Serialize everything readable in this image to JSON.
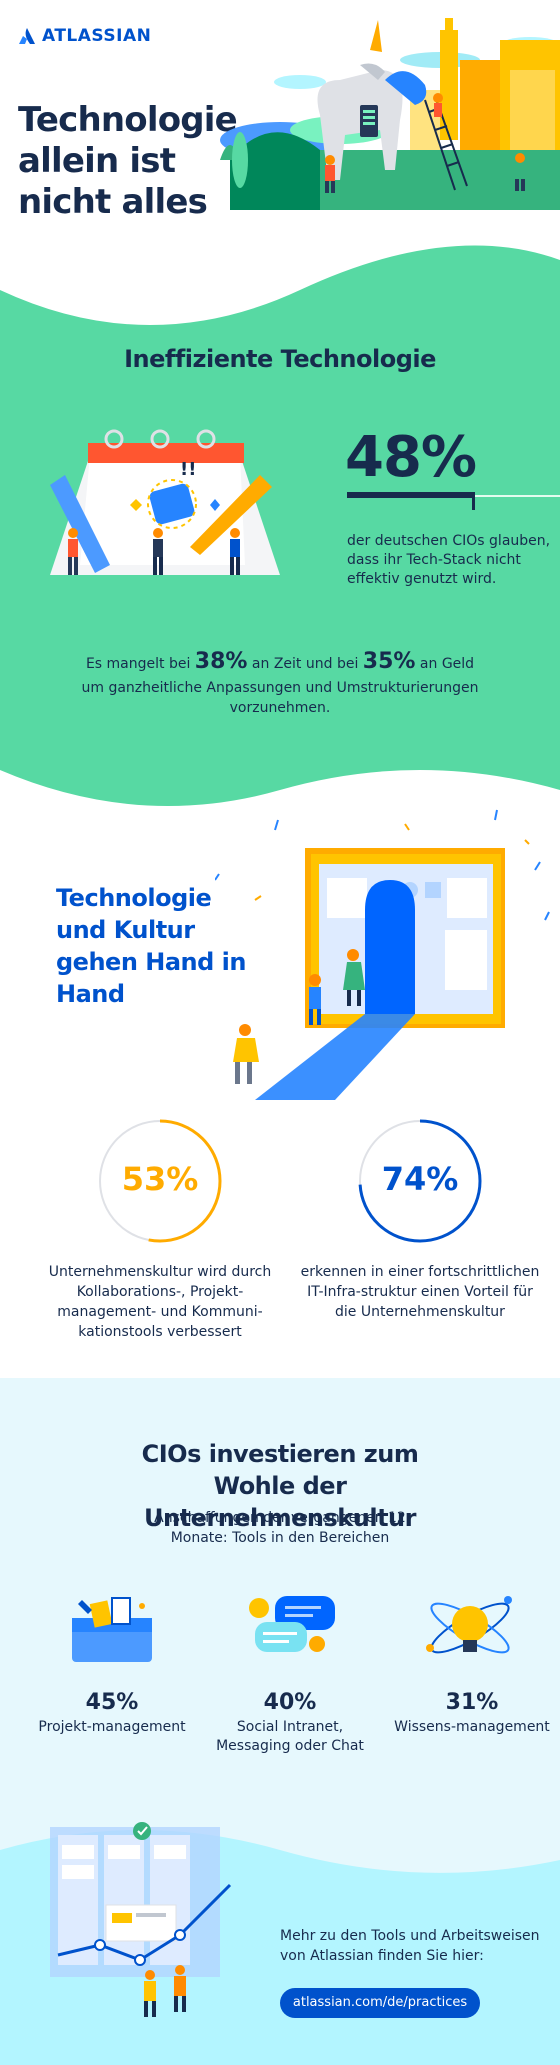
{
  "brand": {
    "logo_text": "ATLASSIAN"
  },
  "hero": {
    "title": "Technologie allein ist nicht alles"
  },
  "section1": {
    "title": "Ineffiziente Technologie",
    "stat_big": "48%",
    "stat_text": "der deutschen CIOs glauben, dass ihr Tech-Stack nicht effektiv genutzt wird.",
    "lack_prefix": "Es mangelt bei",
    "lack_time_pct": "38%",
    "lack_time_label": "an Zeit  und  bei",
    "lack_money_pct": "35%",
    "lack_money_label": "an Geld",
    "lack_rest": "um ganzheitliche Anpassungen und Umstrukturierungen vorzunehmen."
  },
  "section2": {
    "title": "Technologie und Kultur gehen Hand in Hand",
    "stat_left": {
      "value": "53%",
      "fraction": 0.53,
      "color": "#ffab00",
      "text": "Unternehmenskultur wird durch Kollaborations-, Projekt-management- und Kommuni-kationstools verbessert"
    },
    "stat_right": {
      "value": "74%",
      "fraction": 0.74,
      "color": "#0052cc",
      "text": "erkennen in einer fortschrittlichen IT-Infra-struktur einen Vorteil für die Unternehmenskultur"
    }
  },
  "section3": {
    "title": "CIOs investieren zum Wohle der Unternehmenskultur",
    "subtitle": "Anschaffungen der vergangenen 12 Monate: Tools in den Bereichen",
    "tools": [
      {
        "pct": "45%",
        "label": "Projekt-management",
        "icon": "toolbox-icon"
      },
      {
        "pct": "40%",
        "label": "Social Intranet, Messaging oder Chat",
        "icon": "chat-bubbles-icon"
      },
      {
        "pct": "31%",
        "label": "Wissens-management",
        "icon": "lightbulb-icon"
      }
    ],
    "cta_text": "Mehr zu den Tools und Arbeitsweisen von Atlassian finden Sie hier:",
    "cta_link": "atlassian.com/de/practices"
  },
  "colors": {
    "navy": "#172b4d",
    "blue": "#0052cc",
    "green": "#57d9a3",
    "yellow": "#ffab00",
    "light_blue_bg": "#e6f8fd"
  }
}
